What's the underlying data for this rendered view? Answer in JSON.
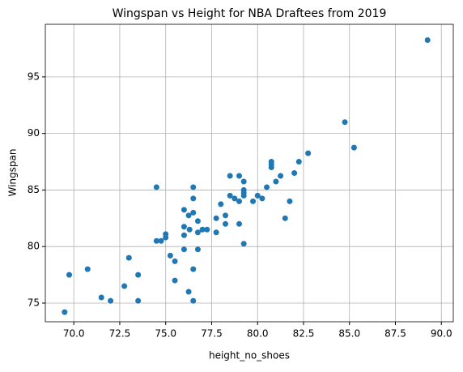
{
  "chart_data": {
    "type": "scatter",
    "title": "Wingspan vs Height for NBA Draftees from 2019",
    "x_label": "height_no_shoes",
    "y_label": "Wingspan",
    "color": "#1f77b4",
    "grid": true,
    "xlim": [
      68.45,
      90.65
    ],
    "ylim": [
      73.35,
      99.65
    ],
    "xticks": [
      {
        "value": 70,
        "label": "70.0"
      },
      72.5,
      {
        "value": 75,
        "label": "75.0"
      },
      77.5,
      {
        "value": 80,
        "label": "80.0"
      },
      82.5,
      {
        "value": 85,
        "label": "85.0"
      },
      87.5,
      {
        "value": 90,
        "label": "90.0"
      }
    ],
    "yticks": [
      75,
      80,
      85,
      90,
      95
    ],
    "x": [
      69.5,
      69.75,
      70.75,
      71.5,
      72.0,
      72.75,
      73.0,
      73.5,
      73.5,
      74.5,
      74.5,
      74.75,
      75.0,
      75.0,
      75.25,
      75.5,
      75.5,
      76.0,
      76.0,
      76.0,
      76.0,
      76.25,
      76.3,
      76.25,
      76.5,
      76.5,
      76.5,
      76.5,
      76.5,
      76.75,
      76.75,
      76.75,
      77.0,
      77.25,
      77.75,
      77.75,
      78.0,
      78.25,
      78.25,
      78.5,
      78.5,
      78.75,
      79.0,
      79.0,
      79.0,
      79.25,
      79.25,
      79.25,
      79.25,
      79.25,
      79.75,
      80.0,
      80.25,
      80.5,
      80.75,
      80.75,
      80.75,
      81.0,
      81.25,
      81.5,
      81.75,
      82.0,
      82.25,
      82.75,
      84.75,
      85.25,
      89.25
    ],
    "values": [
      74.2,
      77.5,
      78.0,
      75.5,
      75.2,
      76.5,
      79.0,
      77.5,
      75.2,
      85.25,
      80.5,
      80.5,
      80.8,
      81.1,
      79.2,
      78.7,
      77.0,
      83.25,
      81.75,
      81.0,
      79.75,
      82.75,
      81.5,
      76.0,
      85.25,
      84.25,
      83.0,
      78.0,
      75.2,
      82.25,
      81.25,
      79.75,
      81.5,
      81.5,
      82.5,
      81.25,
      83.75,
      82.75,
      82.0,
      86.25,
      84.5,
      84.25,
      86.25,
      84.0,
      82.0,
      85.75,
      85.0,
      84.75,
      84.5,
      80.25,
      84.0,
      84.5,
      84.25,
      85.25,
      87.5,
      87.25,
      87.0,
      85.75,
      86.25,
      82.5,
      84.0,
      86.5,
      87.5,
      88.25,
      91.0,
      88.75,
      98.25
    ]
  }
}
